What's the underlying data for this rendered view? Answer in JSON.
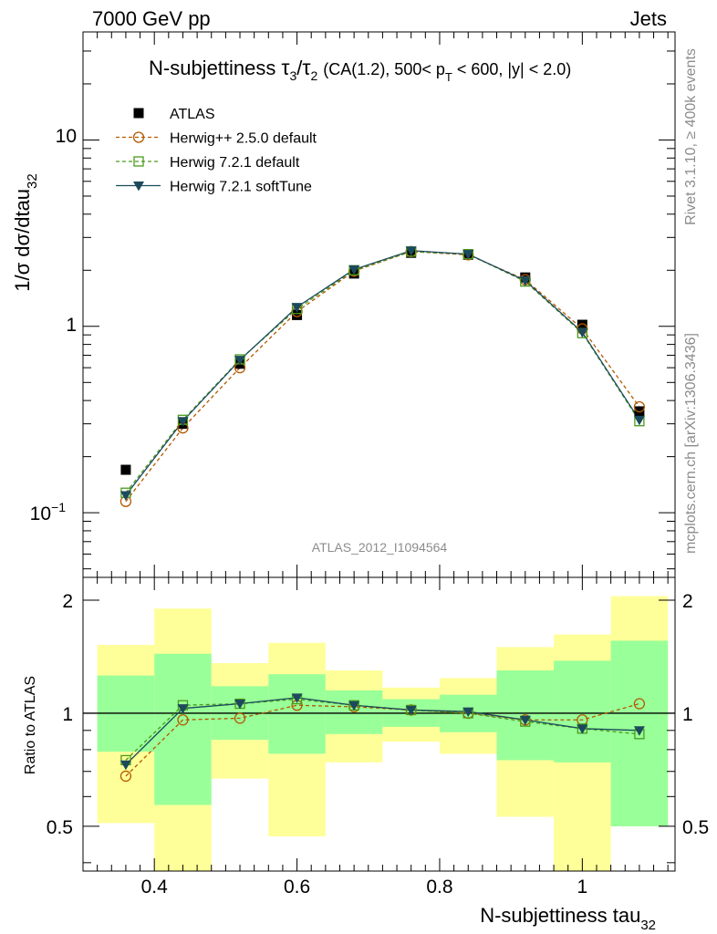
{
  "header": {
    "left": "7000 GeV pp",
    "right": "Jets"
  },
  "side_text": {
    "rivet": "Rivet 3.1.10, ≥ 400k events",
    "mcplots": "mcplots.cern.ch [arXiv:1306.3436]"
  },
  "chart_data": [
    {
      "type": "line",
      "panel": "main",
      "title_parts": {
        "name": "N-subjettiness",
        "tau": "τ",
        "sub3": "3",
        "slash": "/",
        "sub2": "2",
        "cuts_a": "(CA(1.2), 500< p",
        "sub_t": "T",
        "cuts_b": " < 600, |y| < 2.0)"
      },
      "ylabel": "1/σ dσ/dtau",
      "ylabel_sub": "32",
      "xlabel": "N-subjettiness tau",
      "xlabel_sub": "32",
      "yscale": "log",
      "ylim": [
        0.045,
        38
      ],
      "xlim": [
        0.3,
        1.13
      ],
      "ytick_labels": {
        "ten": "10",
        "one": "1",
        "tenth_base": "10",
        "tenth_exp": "−1"
      },
      "watermark": "ATLAS_2012_I1094564",
      "x": [
        0.36,
        0.44,
        0.52,
        0.6,
        0.68,
        0.76,
        0.84,
        0.92,
        1.0,
        1.08
      ],
      "series": [
        {
          "name": "ATLAS",
          "color": "#000000",
          "marker": "square",
          "values": [
            0.17,
            0.3,
            0.63,
            1.15,
            1.92,
            2.48,
            2.42,
            1.83,
            1.02,
            0.35
          ]
        },
        {
          "name": "Herwig++ 2.5.0 default",
          "color": "#b35900",
          "marker": "circle",
          "dash": true,
          "values": [
            0.115,
            0.285,
            0.6,
            1.2,
            1.98,
            2.52,
            2.42,
            1.78,
            0.97,
            0.37
          ]
        },
        {
          "name": "Herwig 7.2.1 default",
          "color": "#4a9a1c",
          "marker": "open-square",
          "dash": true,
          "values": [
            0.128,
            0.315,
            0.665,
            1.24,
            2.0,
            2.52,
            2.44,
            1.74,
            0.92,
            0.31
          ]
        },
        {
          "name": "Herwig 7.2.1 softTune",
          "color": "#1c4a5c",
          "marker": "triangle-down",
          "values": [
            0.124,
            0.31,
            0.66,
            1.27,
            2.02,
            2.55,
            2.44,
            1.76,
            0.93,
            0.315
          ]
        }
      ]
    },
    {
      "type": "line",
      "panel": "ratio",
      "ylabel": "Ratio to ATLAS",
      "ylim": [
        0.38,
        2.3
      ],
      "yscale": "log",
      "ytick_labels": {
        "two": "2",
        "one": "1",
        "half": "0.5"
      },
      "xtick_labels": [
        "0.4",
        "0.6",
        "0.8",
        "1"
      ],
      "bins": [
        {
          "lo": 0.32,
          "hi": 0.4,
          "yellow": [
            0.51,
            1.52
          ],
          "green": [
            0.79,
            1.26
          ]
        },
        {
          "lo": 0.4,
          "hi": 0.48,
          "yellow": [
            0.38,
            1.9
          ],
          "green": [
            0.57,
            1.44
          ]
        },
        {
          "lo": 0.48,
          "hi": 0.56,
          "yellow": [
            0.67,
            1.36
          ],
          "green": [
            0.85,
            1.18
          ]
        },
        {
          "lo": 0.56,
          "hi": 0.64,
          "yellow": [
            0.47,
            1.54
          ],
          "green": [
            0.78,
            1.27
          ]
        },
        {
          "lo": 0.64,
          "hi": 0.72,
          "yellow": [
            0.74,
            1.3
          ],
          "green": [
            0.88,
            1.15
          ]
        },
        {
          "lo": 0.72,
          "hi": 0.8,
          "yellow": [
            0.84,
            1.17
          ],
          "green": [
            0.92,
            1.09
          ]
        },
        {
          "lo": 0.8,
          "hi": 0.88,
          "yellow": [
            0.78,
            1.24
          ],
          "green": [
            0.89,
            1.12
          ]
        },
        {
          "lo": 0.88,
          "hi": 0.96,
          "yellow": [
            0.53,
            1.5
          ],
          "green": [
            0.75,
            1.3
          ]
        },
        {
          "lo": 0.96,
          "hi": 1.04,
          "yellow": [
            0.38,
            1.62
          ],
          "green": [
            0.74,
            1.38
          ]
        },
        {
          "lo": 1.04,
          "hi": 1.12,
          "yellow": [
            0.5,
            2.05
          ],
          "green": [
            0.5,
            1.56
          ]
        }
      ],
      "x": [
        0.36,
        0.44,
        0.52,
        0.6,
        0.68,
        0.76,
        0.84,
        0.92,
        1.0,
        1.08
      ],
      "series": [
        {
          "name": "Herwig++ 2.5.0 default",
          "color": "#b35900",
          "marker": "circle",
          "dash": true,
          "values": [
            0.68,
            0.96,
            0.97,
            1.05,
            1.04,
            1.02,
            1.0,
            0.96,
            0.96,
            1.06
          ]
        },
        {
          "name": "Herwig 7.2.1 default",
          "color": "#4a9a1c",
          "marker": "open-square",
          "dash": true,
          "values": [
            0.75,
            1.05,
            1.06,
            1.09,
            1.05,
            1.02,
            1.0,
            0.95,
            0.91,
            0.88
          ]
        },
        {
          "name": "Herwig 7.2.1 softTune",
          "color": "#1c4a5c",
          "marker": "triangle-down",
          "values": [
            0.73,
            1.03,
            1.06,
            1.1,
            1.05,
            1.02,
            1.01,
            0.96,
            0.91,
            0.9
          ]
        }
      ]
    }
  ]
}
